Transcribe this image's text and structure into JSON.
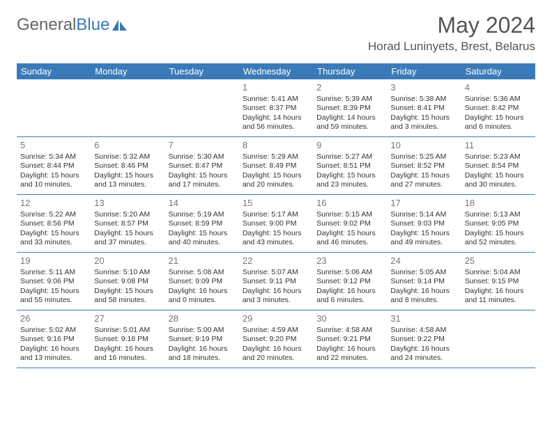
{
  "logo": {
    "text1": "General",
    "text2": "Blue"
  },
  "header": {
    "month_title": "May 2024",
    "location": "Horad Luninyets, Brest, Belarus"
  },
  "colors": {
    "header_blue": "#3a7ab8",
    "text_gray": "#555555",
    "daynum_gray": "#777777",
    "body_text": "#333333",
    "background": "#ffffff"
  },
  "days_of_week": [
    "Sunday",
    "Monday",
    "Tuesday",
    "Wednesday",
    "Thursday",
    "Friday",
    "Saturday"
  ],
  "weeks": [
    [
      null,
      null,
      null,
      {
        "n": "1",
        "sr": "5:41 AM",
        "ss": "8:37 PM",
        "dl": "14 hours and 56 minutes."
      },
      {
        "n": "2",
        "sr": "5:39 AM",
        "ss": "8:39 PM",
        "dl": "14 hours and 59 minutes."
      },
      {
        "n": "3",
        "sr": "5:38 AM",
        "ss": "8:41 PM",
        "dl": "15 hours and 3 minutes."
      },
      {
        "n": "4",
        "sr": "5:36 AM",
        "ss": "8:42 PM",
        "dl": "15 hours and 6 minutes."
      }
    ],
    [
      {
        "n": "5",
        "sr": "5:34 AM",
        "ss": "8:44 PM",
        "dl": "15 hours and 10 minutes."
      },
      {
        "n": "6",
        "sr": "5:32 AM",
        "ss": "8:46 PM",
        "dl": "15 hours and 13 minutes."
      },
      {
        "n": "7",
        "sr": "5:30 AM",
        "ss": "8:47 PM",
        "dl": "15 hours and 17 minutes."
      },
      {
        "n": "8",
        "sr": "5:29 AM",
        "ss": "8:49 PM",
        "dl": "15 hours and 20 minutes."
      },
      {
        "n": "9",
        "sr": "5:27 AM",
        "ss": "8:51 PM",
        "dl": "15 hours and 23 minutes."
      },
      {
        "n": "10",
        "sr": "5:25 AM",
        "ss": "8:52 PM",
        "dl": "15 hours and 27 minutes."
      },
      {
        "n": "11",
        "sr": "5:23 AM",
        "ss": "8:54 PM",
        "dl": "15 hours and 30 minutes."
      }
    ],
    [
      {
        "n": "12",
        "sr": "5:22 AM",
        "ss": "8:56 PM",
        "dl": "15 hours and 33 minutes."
      },
      {
        "n": "13",
        "sr": "5:20 AM",
        "ss": "8:57 PM",
        "dl": "15 hours and 37 minutes."
      },
      {
        "n": "14",
        "sr": "5:19 AM",
        "ss": "8:59 PM",
        "dl": "15 hours and 40 minutes."
      },
      {
        "n": "15",
        "sr": "5:17 AM",
        "ss": "9:00 PM",
        "dl": "15 hours and 43 minutes."
      },
      {
        "n": "16",
        "sr": "5:15 AM",
        "ss": "9:02 PM",
        "dl": "15 hours and 46 minutes."
      },
      {
        "n": "17",
        "sr": "5:14 AM",
        "ss": "9:03 PM",
        "dl": "15 hours and 49 minutes."
      },
      {
        "n": "18",
        "sr": "5:13 AM",
        "ss": "9:05 PM",
        "dl": "15 hours and 52 minutes."
      }
    ],
    [
      {
        "n": "19",
        "sr": "5:11 AM",
        "ss": "9:06 PM",
        "dl": "15 hours and 55 minutes."
      },
      {
        "n": "20",
        "sr": "5:10 AM",
        "ss": "9:08 PM",
        "dl": "15 hours and 58 minutes."
      },
      {
        "n": "21",
        "sr": "5:08 AM",
        "ss": "9:09 PM",
        "dl": "16 hours and 0 minutes."
      },
      {
        "n": "22",
        "sr": "5:07 AM",
        "ss": "9:11 PM",
        "dl": "16 hours and 3 minutes."
      },
      {
        "n": "23",
        "sr": "5:06 AM",
        "ss": "9:12 PM",
        "dl": "16 hours and 6 minutes."
      },
      {
        "n": "24",
        "sr": "5:05 AM",
        "ss": "9:14 PM",
        "dl": "16 hours and 8 minutes."
      },
      {
        "n": "25",
        "sr": "5:04 AM",
        "ss": "9:15 PM",
        "dl": "16 hours and 11 minutes."
      }
    ],
    [
      {
        "n": "26",
        "sr": "5:02 AM",
        "ss": "9:16 PM",
        "dl": "16 hours and 13 minutes."
      },
      {
        "n": "27",
        "sr": "5:01 AM",
        "ss": "9:18 PM",
        "dl": "16 hours and 16 minutes."
      },
      {
        "n": "28",
        "sr": "5:00 AM",
        "ss": "9:19 PM",
        "dl": "16 hours and 18 minutes."
      },
      {
        "n": "29",
        "sr": "4:59 AM",
        "ss": "9:20 PM",
        "dl": "16 hours and 20 minutes."
      },
      {
        "n": "30",
        "sr": "4:58 AM",
        "ss": "9:21 PM",
        "dl": "16 hours and 22 minutes."
      },
      {
        "n": "31",
        "sr": "4:58 AM",
        "ss": "9:22 PM",
        "dl": "16 hours and 24 minutes."
      },
      null
    ]
  ],
  "labels": {
    "sunrise": "Sunrise:",
    "sunset": "Sunset:",
    "daylight": "Daylight:"
  }
}
